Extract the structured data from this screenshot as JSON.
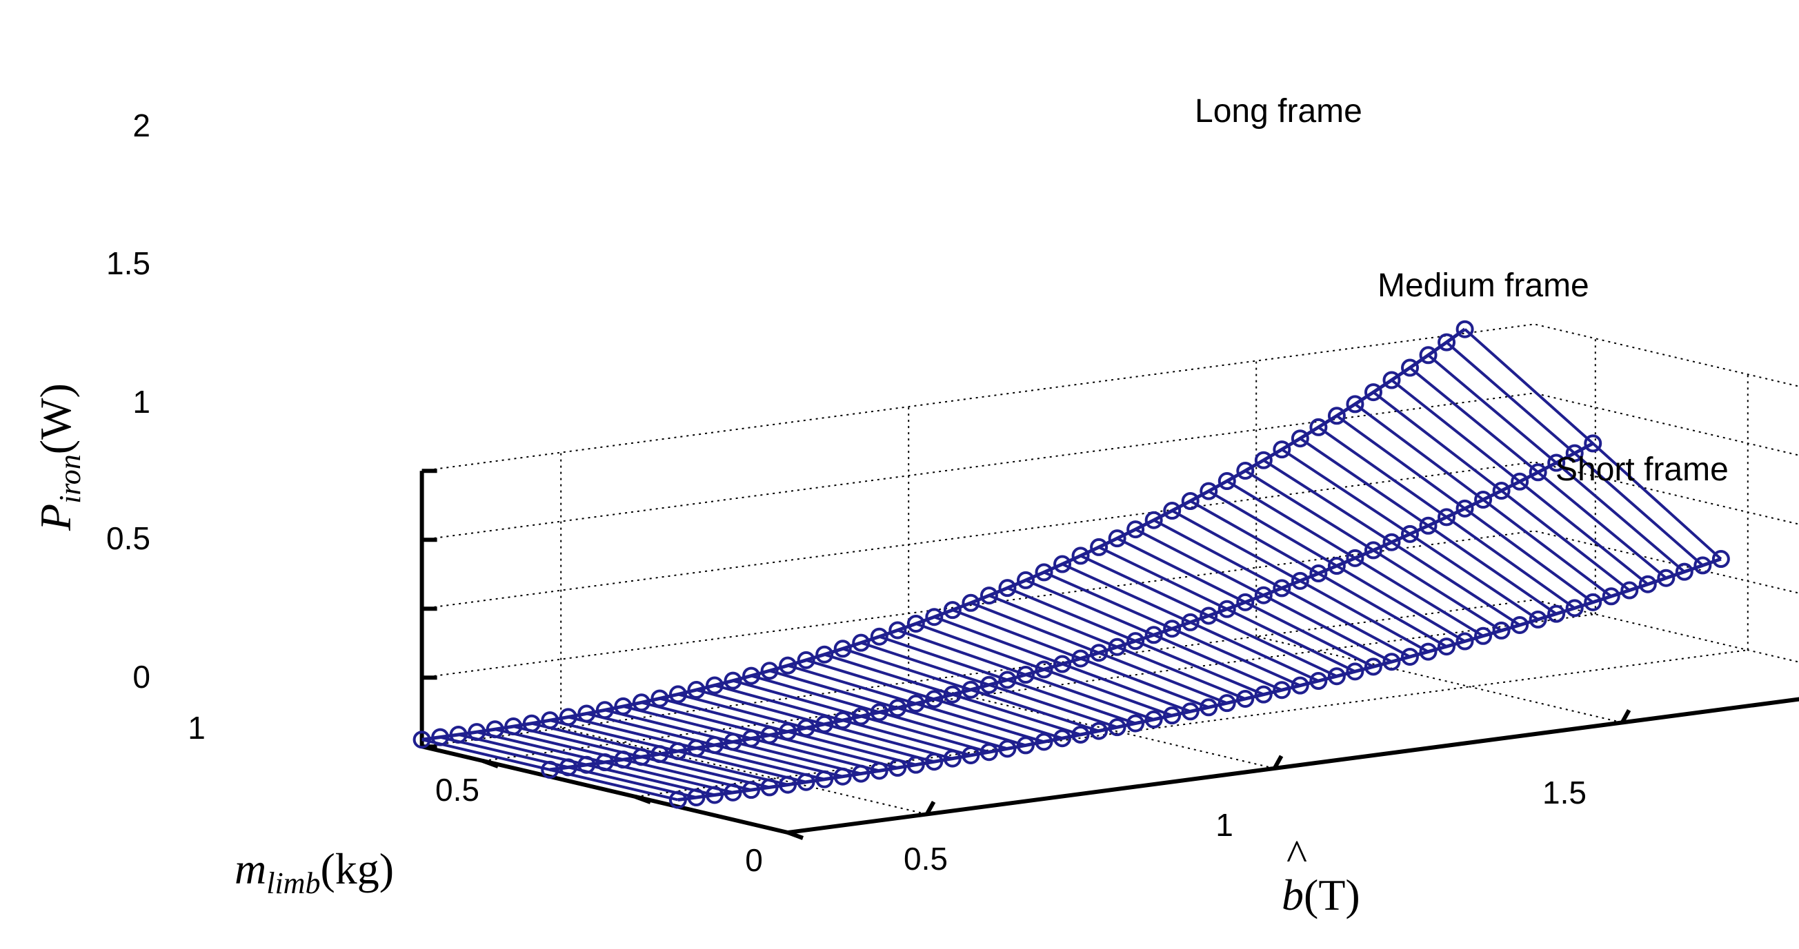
{
  "chart_data": {
    "type": "line",
    "projection": "3d",
    "grid": true,
    "zlabel": {
      "main": "P",
      "sub": "iron",
      "unit": "(W)"
    },
    "ylabel": {
      "main": "m",
      "sub": "limb",
      "unit": "(kg)"
    },
    "xlabel": {
      "main": "b",
      "hat": "^",
      "unit": "(T)"
    },
    "z_ticks": [
      "0",
      "0.5",
      "1",
      "1.5",
      "2"
    ],
    "y_ticks": [
      "0",
      "0.5",
      "1"
    ],
    "x_ticks": [
      "0.5",
      "1",
      "1.5"
    ],
    "zlim": [
      0,
      2
    ],
    "ylim": [
      0,
      1.2
    ],
    "xlim": [
      0.3,
      1.9
    ],
    "color": "#1f1f8f",
    "b_range": [
      0.3,
      1.8
    ],
    "num_points": 58,
    "series": [
      {
        "name": "Long frame",
        "m_limb": 1.2,
        "p_end": 2.03
      },
      {
        "name": "Medium frame",
        "m_limb": 0.78,
        "p_end": 1.42
      },
      {
        "name": "Short frame",
        "m_limb": 0.36,
        "p_end": 0.8
      }
    ],
    "annotations": [
      "Long frame",
      "Medium frame",
      "Short frame"
    ]
  }
}
